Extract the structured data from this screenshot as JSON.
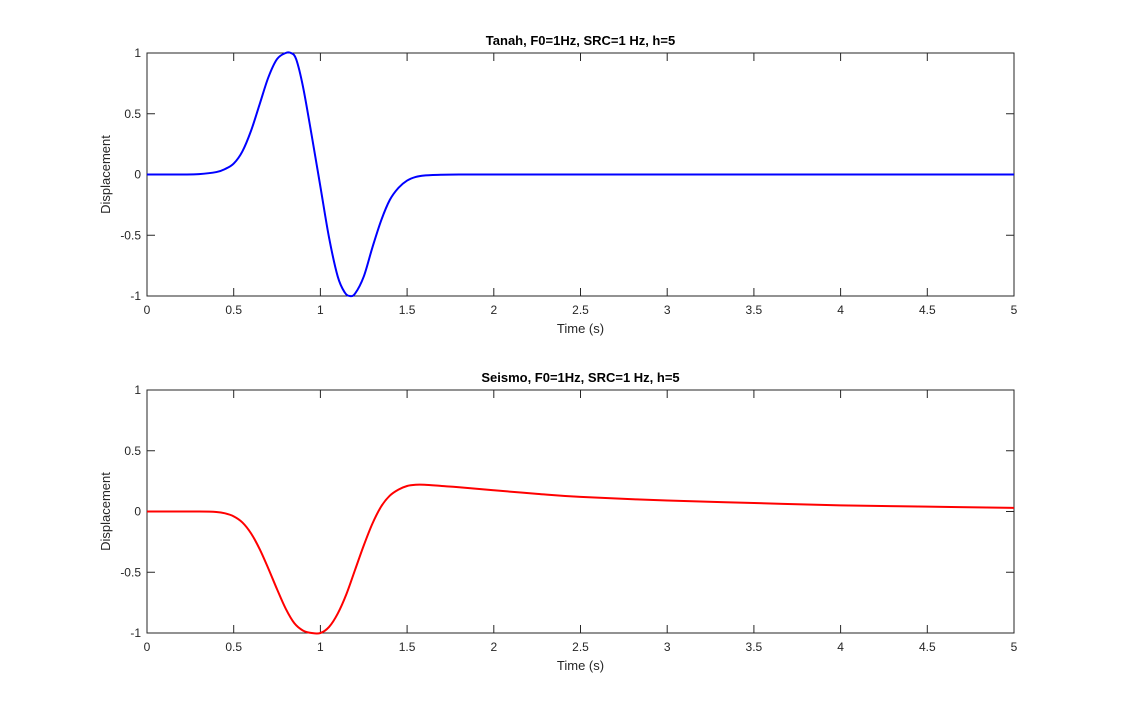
{
  "chart_data": [
    {
      "type": "line",
      "title": "Tanah, F0=1Hz, SRC=1 Hz, h=5",
      "xlabel": "Time (s)",
      "ylabel": "Displacement",
      "xlim": [
        0,
        5
      ],
      "ylim": [
        -1,
        1
      ],
      "xticks": [
        0,
        0.5,
        1,
        1.5,
        2,
        2.5,
        3,
        3.5,
        4,
        4.5,
        5
      ],
      "xtick_labels": [
        "0",
        "0.5",
        "1",
        "1.5",
        "2",
        "2.5",
        "3",
        "3.5",
        "4",
        "4.5",
        "5"
      ],
      "yticks": [
        -1,
        -0.5,
        0,
        0.5,
        1
      ],
      "ytick_labels": [
        "-1",
        "-0.5",
        "0",
        "0.5",
        "1"
      ],
      "grid": false,
      "series": [
        {
          "color": "#0000ff",
          "x": [
            0,
            0.2,
            0.3,
            0.4,
            0.45,
            0.5,
            0.55,
            0.6,
            0.65,
            0.7,
            0.75,
            0.8,
            0.83,
            0.86,
            0.9,
            0.95,
            1.0,
            1.05,
            1.1,
            1.14,
            1.17,
            1.2,
            1.25,
            1.3,
            1.35,
            1.4,
            1.45,
            1.5,
            1.55,
            1.6,
            1.7,
            1.8,
            2.0,
            3.0,
            4.0,
            5.0
          ],
          "y": [
            0,
            0,
            0.003,
            0.02,
            0.045,
            0.09,
            0.19,
            0.36,
            0.58,
            0.8,
            0.95,
            1.0,
            1.0,
            0.95,
            0.72,
            0.32,
            -0.1,
            -0.52,
            -0.84,
            -0.97,
            -1.0,
            -0.98,
            -0.84,
            -0.6,
            -0.38,
            -0.21,
            -0.11,
            -0.05,
            -0.02,
            -0.008,
            -0.002,
            0,
            0,
            0,
            0,
            0
          ]
        }
      ]
    },
    {
      "type": "line",
      "title": "Seismo, F0=1Hz, SRC=1 Hz, h=5",
      "xlabel": "Time (s)",
      "ylabel": "Displacement",
      "xlim": [
        0,
        5
      ],
      "ylim": [
        -1,
        1
      ],
      "xticks": [
        0,
        0.5,
        1,
        1.5,
        2,
        2.5,
        3,
        3.5,
        4,
        4.5,
        5
      ],
      "xtick_labels": [
        "0",
        "0.5",
        "1",
        "1.5",
        "2",
        "2.5",
        "3",
        "3.5",
        "4",
        "4.5",
        "5"
      ],
      "yticks": [
        -1,
        -0.5,
        0,
        0.5,
        1
      ],
      "ytick_labels": [
        "-1",
        "-0.5",
        "0",
        "0.5",
        "1"
      ],
      "grid": false,
      "series": [
        {
          "color": "#ff0000",
          "x": [
            0,
            0.3,
            0.4,
            0.45,
            0.5,
            0.55,
            0.6,
            0.65,
            0.7,
            0.75,
            0.8,
            0.85,
            0.9,
            0.95,
            1.0,
            1.05,
            1.1,
            1.15,
            1.2,
            1.25,
            1.3,
            1.35,
            1.4,
            1.45,
            1.5,
            1.55,
            1.6,
            1.7,
            1.8,
            2.0,
            2.25,
            2.5,
            3.0,
            3.5,
            4.0,
            4.5,
            5.0
          ],
          "y": [
            0,
            0,
            -0.004,
            -0.015,
            -0.04,
            -0.09,
            -0.18,
            -0.31,
            -0.47,
            -0.64,
            -0.8,
            -0.92,
            -0.98,
            -1.0,
            -1.0,
            -0.95,
            -0.84,
            -0.68,
            -0.48,
            -0.28,
            -0.1,
            0.04,
            0.13,
            0.18,
            0.21,
            0.22,
            0.22,
            0.21,
            0.2,
            0.175,
            0.145,
            0.12,
            0.09,
            0.07,
            0.05,
            0.04,
            0.03
          ]
        }
      ]
    }
  ]
}
